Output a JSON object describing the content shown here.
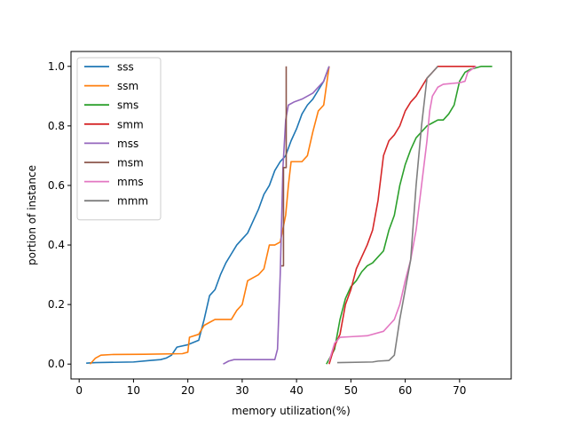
{
  "chart_data": {
    "type": "line",
    "xlabel": "memory utilization(%)",
    "ylabel": "portion of instance",
    "xlim": [
      -1.5,
      79.5
    ],
    "ylim": [
      -0.05,
      1.05
    ],
    "xticks": [
      0,
      10,
      20,
      30,
      40,
      50,
      60,
      70
    ],
    "yticks": [
      0.0,
      0.2,
      0.4,
      0.6,
      0.8,
      1.0
    ],
    "xtick_labels": [
      "0",
      "10",
      "20",
      "30",
      "40",
      "50",
      "60",
      "70"
    ],
    "ytick_labels": [
      "0.0",
      "0.2",
      "0.4",
      "0.6",
      "0.8",
      "1.0"
    ],
    "grid": false,
    "legend_position": "upper-left",
    "series": [
      {
        "name": "sss",
        "color": "#1f77b4",
        "points": [
          [
            1.3,
            0.003
          ],
          [
            3,
            0.005
          ],
          [
            10,
            0.007
          ],
          [
            13,
            0.012
          ],
          [
            15,
            0.015
          ],
          [
            16,
            0.02
          ],
          [
            17,
            0.03
          ],
          [
            18,
            0.057
          ],
          [
            20,
            0.065
          ],
          [
            22,
            0.08
          ],
          [
            23,
            0.15
          ],
          [
            24,
            0.23
          ],
          [
            25,
            0.25
          ],
          [
            26,
            0.3
          ],
          [
            27,
            0.34
          ],
          [
            28,
            0.37
          ],
          [
            29,
            0.4
          ],
          [
            30,
            0.42
          ],
          [
            31,
            0.44
          ],
          [
            32,
            0.48
          ],
          [
            33,
            0.52
          ],
          [
            34,
            0.57
          ],
          [
            35,
            0.6
          ],
          [
            36,
            0.65
          ],
          [
            37,
            0.68
          ],
          [
            38,
            0.7
          ],
          [
            39,
            0.75
          ],
          [
            40,
            0.79
          ],
          [
            41,
            0.84
          ],
          [
            42,
            0.87
          ],
          [
            43,
            0.89
          ],
          [
            44,
            0.92
          ],
          [
            45,
            0.95
          ],
          [
            46,
            1.0
          ]
        ]
      },
      {
        "name": "ssm",
        "color": "#ff7f0e",
        "points": [
          [
            2,
            0.0
          ],
          [
            3,
            0.02
          ],
          [
            4,
            0.03
          ],
          [
            6,
            0.032
          ],
          [
            12,
            0.033
          ],
          [
            19,
            0.035
          ],
          [
            20,
            0.04
          ],
          [
            20.3,
            0.09
          ],
          [
            22,
            0.1
          ],
          [
            23,
            0.13
          ],
          [
            24,
            0.14
          ],
          [
            25,
            0.15
          ],
          [
            28,
            0.15
          ],
          [
            29,
            0.18
          ],
          [
            30,
            0.2
          ],
          [
            31,
            0.28
          ],
          [
            32,
            0.29
          ],
          [
            33,
            0.3
          ],
          [
            34,
            0.32
          ],
          [
            35,
            0.4
          ],
          [
            36,
            0.4
          ],
          [
            37,
            0.41
          ],
          [
            38,
            0.5
          ],
          [
            38.5,
            0.6
          ],
          [
            39,
            0.68
          ],
          [
            41,
            0.68
          ],
          [
            42,
            0.7
          ],
          [
            43,
            0.78
          ],
          [
            44,
            0.85
          ],
          [
            45,
            0.87
          ],
          [
            46,
            1.0
          ]
        ]
      },
      {
        "name": "sms",
        "color": "#2ca02c",
        "points": [
          [
            45.5,
            0.0
          ],
          [
            47,
            0.05
          ],
          [
            48,
            0.15
          ],
          [
            49,
            0.22
          ],
          [
            50,
            0.26
          ],
          [
            51,
            0.28
          ],
          [
            52,
            0.31
          ],
          [
            53,
            0.33
          ],
          [
            54,
            0.34
          ],
          [
            55,
            0.36
          ],
          [
            56,
            0.38
          ],
          [
            57,
            0.45
          ],
          [
            58,
            0.5
          ],
          [
            59,
            0.6
          ],
          [
            60,
            0.67
          ],
          [
            61,
            0.72
          ],
          [
            62,
            0.76
          ],
          [
            63,
            0.78
          ],
          [
            64,
            0.8
          ],
          [
            65,
            0.81
          ],
          [
            66,
            0.82
          ],
          [
            67,
            0.82
          ],
          [
            68,
            0.84
          ],
          [
            69,
            0.87
          ],
          [
            70,
            0.95
          ],
          [
            71,
            0.98
          ],
          [
            72,
            0.99
          ],
          [
            74,
            1.0
          ],
          [
            76,
            1.0
          ]
        ]
      },
      {
        "name": "smm",
        "color": "#d62728",
        "points": [
          [
            46,
            0.0
          ],
          [
            47,
            0.06
          ],
          [
            48,
            0.1
          ],
          [
            49,
            0.2
          ],
          [
            50,
            0.25
          ],
          [
            51,
            0.32
          ],
          [
            52,
            0.36
          ],
          [
            53,
            0.4
          ],
          [
            54,
            0.45
          ],
          [
            55,
            0.55
          ],
          [
            56,
            0.7
          ],
          [
            57,
            0.75
          ],
          [
            58,
            0.77
          ],
          [
            59,
            0.8
          ],
          [
            60,
            0.85
          ],
          [
            61,
            0.88
          ],
          [
            62,
            0.9
          ],
          [
            63,
            0.93
          ],
          [
            64,
            0.96
          ],
          [
            65,
            0.98
          ],
          [
            66,
            1.0
          ],
          [
            73,
            1.0
          ]
        ]
      },
      {
        "name": "mss",
        "color": "#9467bd",
        "points": [
          [
            26.5,
            0.0
          ],
          [
            27.5,
            0.01
          ],
          [
            28.5,
            0.015
          ],
          [
            36,
            0.015
          ],
          [
            36.5,
            0.05
          ],
          [
            37,
            0.3
          ],
          [
            37.5,
            0.66
          ],
          [
            38,
            0.82
          ],
          [
            38.5,
            0.87
          ],
          [
            39.5,
            0.88
          ],
          [
            41,
            0.89
          ],
          [
            43,
            0.91
          ],
          [
            45,
            0.95
          ],
          [
            46,
            1.0
          ]
        ]
      },
      {
        "name": "msm",
        "color": "#8c564b",
        "points": [
          [
            37.2,
            0.33
          ],
          [
            37.6,
            0.33
          ],
          [
            37.6,
            0.66
          ],
          [
            38.1,
            0.66
          ],
          [
            38.1,
            1.0
          ]
        ]
      },
      {
        "name": "mms",
        "color": "#e377c2",
        "points": [
          [
            46,
            0.01
          ],
          [
            47,
            0.07
          ],
          [
            48,
            0.09
          ],
          [
            50,
            0.092
          ],
          [
            53,
            0.095
          ],
          [
            56,
            0.11
          ],
          [
            57,
            0.13
          ],
          [
            58,
            0.15
          ],
          [
            59,
            0.2
          ],
          [
            60,
            0.28
          ],
          [
            61,
            0.35
          ],
          [
            62,
            0.45
          ],
          [
            63,
            0.6
          ],
          [
            64,
            0.75
          ],
          [
            64.5,
            0.85
          ],
          [
            65,
            0.9
          ],
          [
            66,
            0.93
          ],
          [
            67,
            0.94
          ],
          [
            70,
            0.945
          ],
          [
            71,
            0.95
          ],
          [
            71.5,
            0.98
          ],
          [
            73,
            1.0
          ]
        ]
      },
      {
        "name": "mmm",
        "color": "#7f7f7f",
        "points": [
          [
            47.5,
            0.005
          ],
          [
            54,
            0.007
          ],
          [
            55,
            0.01
          ],
          [
            57,
            0.012
          ],
          [
            58,
            0.03
          ],
          [
            59,
            0.15
          ],
          [
            60,
            0.25
          ],
          [
            61,
            0.35
          ],
          [
            62,
            0.6
          ],
          [
            63,
            0.8
          ],
          [
            64,
            0.96
          ],
          [
            65,
            0.98
          ],
          [
            66,
            1.0
          ]
        ]
      }
    ]
  }
}
